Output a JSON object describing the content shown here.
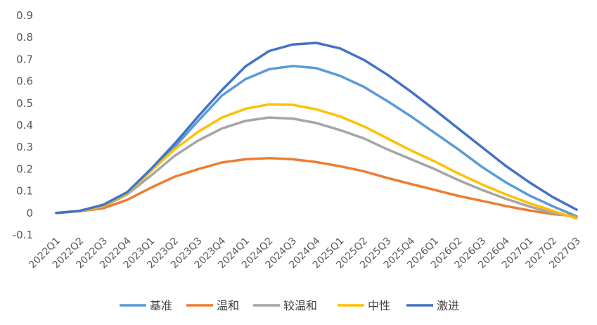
{
  "chart_data": {
    "type": "line",
    "title": "",
    "xlabel": "",
    "ylabel": "",
    "ylim": [
      -0.1,
      0.9
    ],
    "yticks": [
      -0.1,
      0,
      0.1,
      0.2,
      0.3,
      0.4,
      0.5,
      0.6,
      0.7,
      0.8,
      0.9
    ],
    "ytick_labels": [
      "-0.1",
      "0",
      "0.1",
      "0.2",
      "0.3",
      "0.4",
      "0.5",
      "0.6",
      "0.7",
      "0.8",
      "0.9"
    ],
    "grid": false,
    "legend_position": "bottom",
    "categories": [
      "2022Q1",
      "2022Q2",
      "2022Q3",
      "2022Q4",
      "2023Q1",
      "2023Q2",
      "2023Q3",
      "2023Q4",
      "2024Q1",
      "2024Q2",
      "2024Q3",
      "2024Q4",
      "2025Q1",
      "2025Q2",
      "2025Q3",
      "2025Q4",
      "2026Q1",
      "2026Q2",
      "2026Q3",
      "2026Q4",
      "2027Q1",
      "2027Q2",
      "2027Q3"
    ],
    "series": [
      {
        "name": "基准",
        "color": "#5B9BD5",
        "values": [
          0,
          0.01,
          0.035,
          0.09,
          0.19,
          0.3,
          0.42,
          0.535,
          0.61,
          0.655,
          0.67,
          0.66,
          0.625,
          0.575,
          0.51,
          0.44,
          0.365,
          0.29,
          0.21,
          0.14,
          0.08,
          0.03,
          -0.015
        ]
      },
      {
        "name": "温和",
        "color": "#ED7D31",
        "values": [
          0,
          0.008,
          0.022,
          0.06,
          0.115,
          0.165,
          0.2,
          0.23,
          0.245,
          0.25,
          0.245,
          0.232,
          0.213,
          0.19,
          0.16,
          0.132,
          0.105,
          0.078,
          0.055,
          0.032,
          0.012,
          -0.005,
          -0.015
        ]
      },
      {
        "name": "较温和",
        "color": "#A5A5A5",
        "values": [
          0,
          0.009,
          0.03,
          0.085,
          0.17,
          0.26,
          0.33,
          0.385,
          0.42,
          0.435,
          0.43,
          0.41,
          0.378,
          0.34,
          0.29,
          0.245,
          0.2,
          0.15,
          0.105,
          0.065,
          0.03,
          0.0,
          -0.02
        ]
      },
      {
        "name": "中性",
        "color": "#FFC000",
        "values": [
          0,
          0.009,
          0.033,
          0.09,
          0.19,
          0.29,
          0.37,
          0.435,
          0.475,
          0.495,
          0.493,
          0.472,
          0.44,
          0.395,
          0.34,
          0.285,
          0.235,
          0.18,
          0.13,
          0.085,
          0.045,
          0.01,
          -0.025
        ]
      },
      {
        "name": "激进",
        "color": "#4472C4",
        "values": [
          0,
          0.01,
          0.038,
          0.095,
          0.2,
          0.315,
          0.44,
          0.56,
          0.668,
          0.738,
          0.768,
          0.775,
          0.75,
          0.698,
          0.63,
          0.553,
          0.47,
          0.385,
          0.3,
          0.215,
          0.14,
          0.072,
          0.015
        ]
      }
    ]
  }
}
